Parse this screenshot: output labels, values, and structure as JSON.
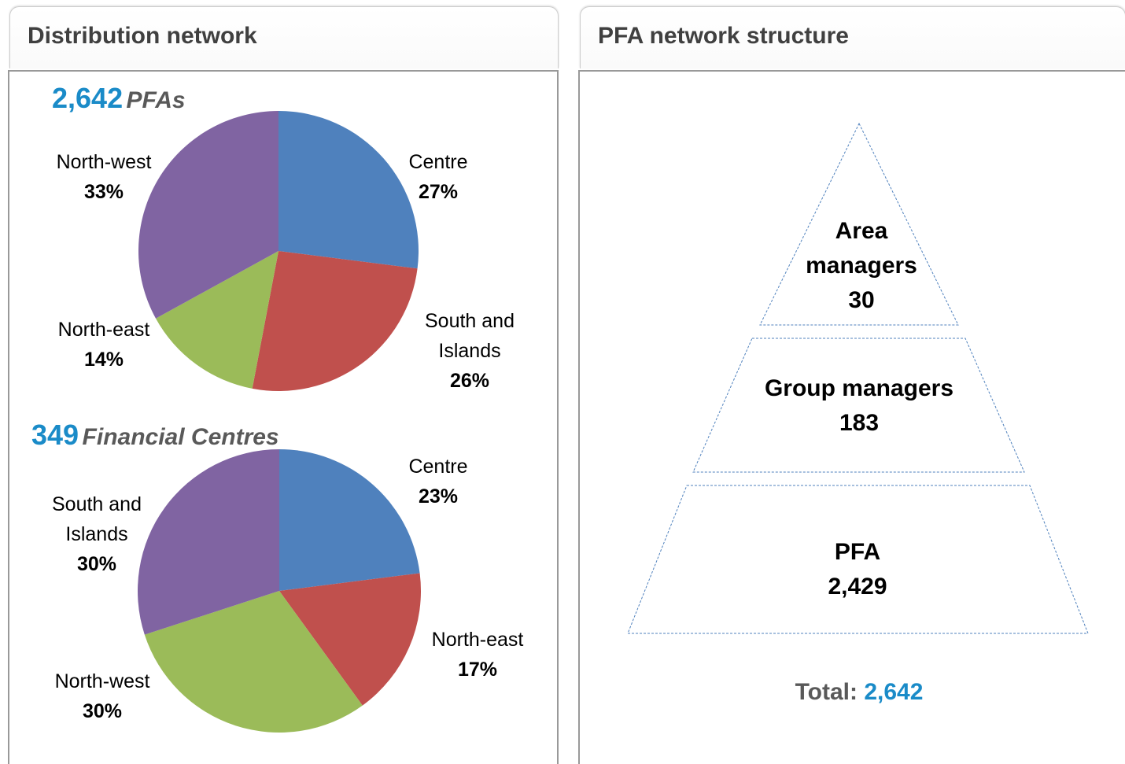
{
  "panels": [
    {
      "title": "Distribution network"
    },
    {
      "title": "PFA network structure"
    }
  ],
  "chart_data": [
    {
      "type": "pie",
      "title_value": "2,642",
      "title_unit": "PFAs",
      "categories": [
        "Centre",
        "South and Islands",
        "North-east",
        "North-west"
      ],
      "values": [
        27,
        26,
        14,
        33
      ],
      "value_labels": [
        "27%",
        "26%",
        "14%",
        "33%"
      ],
      "colors": [
        "#4f81bd",
        "#c0504d",
        "#9bbb59",
        "#8064a2"
      ]
    },
    {
      "type": "pie",
      "title_value": "349",
      "title_unit": "Financial Centres",
      "categories": [
        "Centre",
        "North-east",
        "North-west",
        "South and Islands"
      ],
      "values": [
        23,
        17,
        30,
        30
      ],
      "value_labels": [
        "23%",
        "17%",
        "30%",
        "30%"
      ],
      "colors": [
        "#4f81bd",
        "#c0504d",
        "#9bbb59",
        "#8064a2"
      ]
    }
  ],
  "pyramid": {
    "levels": [
      {
        "label": "Area managers",
        "value": "30"
      },
      {
        "label": "Group managers",
        "value": "183"
      },
      {
        "label": "PFA",
        "value": "2,429"
      }
    ],
    "total_label": "Total:",
    "total_value": "2,642"
  }
}
